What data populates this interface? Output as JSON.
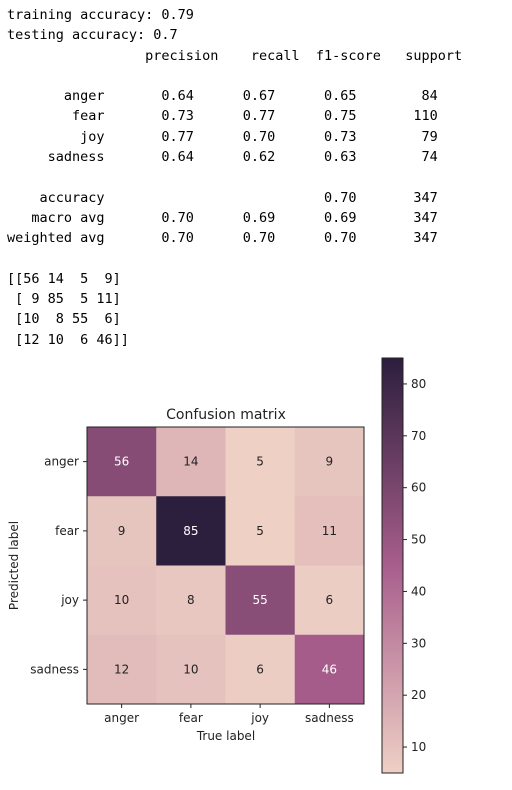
{
  "report_lines": [
    "training accuracy: 0.79",
    "testing accuracy: 0.7",
    "                 precision    recall  f1-score   support",
    "",
    "       anger       0.64      0.67      0.65        84",
    "        fear       0.73      0.77      0.75       110",
    "         joy       0.77      0.70      0.73        79",
    "     sadness       0.64      0.62      0.63        74",
    "",
    "    accuracy                           0.70       347",
    "   macro avg       0.70      0.69      0.69       347",
    "weighted avg       0.70      0.70      0.70       347",
    "",
    "[[56 14  5  9]",
    " [ 9 85  5 11]",
    " [10  8 55  6]",
    " [12 10  6 46]]"
  ],
  "chart_data": {
    "type": "heatmap",
    "title": "Confusion matrix",
    "xlabel": "True label",
    "ylabel": "Predicted label",
    "x_categories": [
      "anger",
      "fear",
      "joy",
      "sadness"
    ],
    "y_categories": [
      "anger",
      "fear",
      "joy",
      "sadness"
    ],
    "values": [
      [
        56,
        14,
        5,
        9
      ],
      [
        9,
        85,
        5,
        11
      ],
      [
        10,
        8,
        55,
        6
      ],
      [
        12,
        10,
        6,
        46
      ]
    ],
    "colorbar": {
      "range": [
        5,
        85
      ],
      "ticks": [
        10,
        20,
        30,
        40,
        50,
        60,
        70,
        80
      ],
      "colors": [
        "#eed0c5",
        "#a85e8c",
        "#2c1e3d"
      ]
    },
    "grid": false
  }
}
